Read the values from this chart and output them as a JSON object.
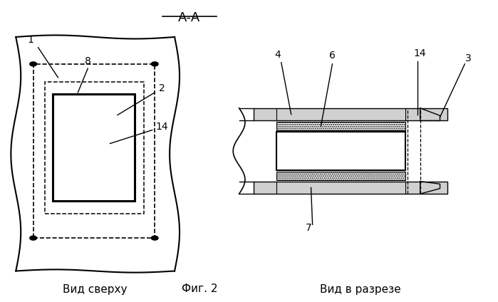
{
  "title": "А-А",
  "fig_label": "Фиг. 2",
  "left_caption": "Вид сверху",
  "right_caption": "Вид в разрезе",
  "bg_color": "#ffffff",
  "line_color": "#000000"
}
